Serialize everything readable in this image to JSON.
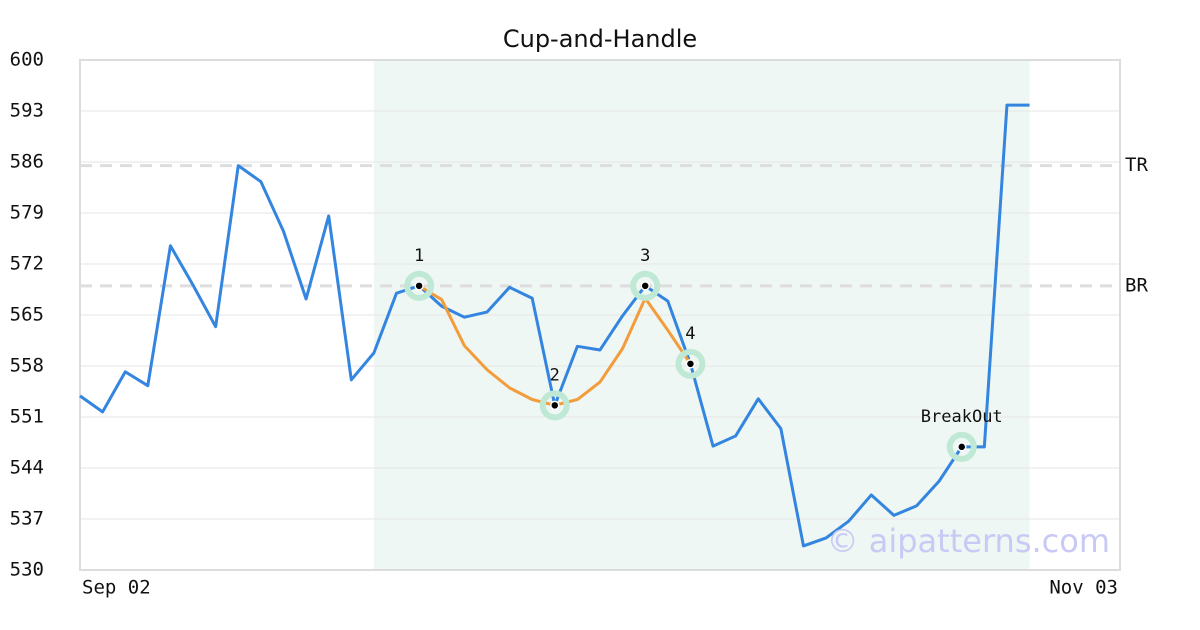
{
  "chart_data": {
    "type": "line",
    "title": "Cup-and-Handle",
    "watermark": "© aipatterns.com",
    "categories": [
      "Sep 02",
      null,
      null,
      null,
      null,
      null,
      null,
      null,
      null,
      null,
      null,
      null,
      null,
      null,
      null,
      null,
      null,
      null,
      null,
      null,
      null,
      null,
      null,
      null,
      null,
      null,
      null,
      null,
      null,
      null,
      null,
      null,
      null,
      null,
      null,
      null,
      null,
      null,
      null,
      null,
      null,
      null,
      null,
      null,
      null,
      null,
      "Nov 03"
    ],
    "series": [
      {
        "color": "#3385e0",
        "values": [
          553.9,
          551.7,
          557.2,
          555.3,
          574.5,
          569.1,
          563.4,
          585.5,
          583.3,
          576.5,
          567.2,
          578.6,
          556.1,
          559.8,
          568.0,
          569.0,
          566.2,
          564.7,
          565.4,
          568.8,
          567.3,
          552.6,
          560.7,
          560.2,
          564.9,
          569.0,
          566.9,
          558.3,
          547.0,
          548.4,
          553.5,
          549.4,
          533.3,
          534.4,
          536.7,
          540.3,
          537.5,
          538.8,
          542.2,
          546.9,
          546.9,
          593.8,
          593.8,
          null,
          null,
          null,
          null
        ]
      },
      {
        "color": "#f39c3c",
        "values": [
          null,
          null,
          null,
          null,
          null,
          null,
          null,
          null,
          null,
          null,
          null,
          null,
          null,
          null,
          null,
          569.0,
          567.1,
          560.8,
          557.5,
          555.0,
          553.4,
          552.6,
          553.4,
          555.8,
          560.4,
          567.3,
          562.9,
          558.3,
          null,
          null,
          null,
          null,
          null,
          null,
          null,
          null,
          null,
          null,
          null,
          null,
          null,
          null,
          null,
          null,
          null,
          null,
          null
        ]
      }
    ],
    "highlight": {
      "from": 13,
      "to": 42,
      "color": "#eef7f3"
    },
    "pattern_points": [
      {
        "category_index": 15,
        "value": 569.0,
        "label": "1"
      },
      {
        "category_index": 21,
        "value": 552.6,
        "label": "2"
      },
      {
        "category_index": 25,
        "value": 569.0,
        "label": "3"
      },
      {
        "category_index": 27,
        "value": 558.3,
        "label": "4"
      },
      {
        "category_index": 39,
        "value": 546.9,
        "label": "BreakOut"
      }
    ],
    "hlines": [
      {
        "label": "TR",
        "value": 585.5
      },
      {
        "label": "BR",
        "value": 569.0
      }
    ],
    "ylim": [
      530,
      600
    ],
    "yticks": [
      530,
      537,
      544,
      551,
      558,
      565,
      572,
      579,
      586,
      593,
      600
    ],
    "grid": true
  }
}
